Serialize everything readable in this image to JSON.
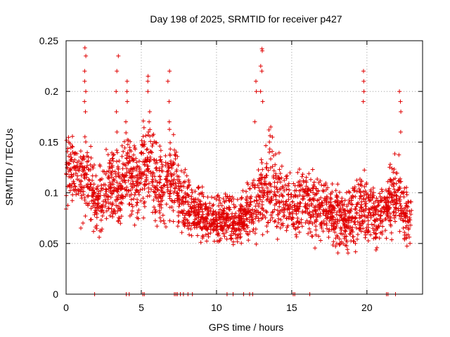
{
  "chart_data": {
    "type": "scatter",
    "title": "Day 198 of 2025, SRMTID for receiver p427",
    "xlabel": "GPS time / hours",
    "ylabel": "SRMTID / TECUs",
    "xlim": [
      0,
      23.7
    ],
    "ylim": [
      0,
      0.25
    ],
    "xticks": [
      0,
      5,
      10,
      15,
      20
    ],
    "xtick_labels": [
      "0",
      "5",
      "10",
      "15",
      "20"
    ],
    "yticks": [
      0,
      0.05,
      0.1,
      0.15,
      0.2,
      0.25
    ],
    "ytick_labels": [
      "0",
      "0.05",
      "0.1",
      "0.15",
      "0.2",
      "0.25"
    ],
    "grid": true,
    "marker": "+",
    "series": [
      {
        "name": "SRMTID",
        "color": "#e00000",
        "trend": {
          "x": [
            0,
            0.5,
            1,
            1.5,
            2,
            2.5,
            3,
            3.5,
            4,
            4.5,
            5,
            5.5,
            6,
            6.5,
            7,
            7.5,
            8,
            8.5,
            9,
            9.5,
            10,
            10.5,
            11,
            11.5,
            12,
            12.5,
            13,
            13.5,
            14,
            14.5,
            15,
            15.5,
            16,
            16.5,
            17,
            17.5,
            18,
            18.5,
            19,
            19.5,
            20,
            20.5,
            21,
            21.5,
            22,
            22.5,
            23
          ],
          "y": [
            0.13,
            0.12,
            0.11,
            0.115,
            0.09,
            0.095,
            0.11,
            0.1,
            0.12,
            0.11,
            0.115,
            0.13,
            0.11,
            0.1,
            0.12,
            0.1,
            0.09,
            0.08,
            0.08,
            0.075,
            0.07,
            0.075,
            0.075,
            0.07,
            0.08,
            0.085,
            0.1,
            0.11,
            0.1,
            0.09,
            0.085,
            0.09,
            0.095,
            0.09,
            0.085,
            0.08,
            0.075,
            0.07,
            0.075,
            0.09,
            0.08,
            0.075,
            0.08,
            0.09,
            0.1,
            0.08,
            0.07
          ],
          "spread": [
            0.035,
            0.03,
            0.035,
            0.04,
            0.03,
            0.03,
            0.035,
            0.03,
            0.035,
            0.03,
            0.035,
            0.04,
            0.035,
            0.035,
            0.04,
            0.03,
            0.025,
            0.02,
            0.025,
            0.02,
            0.02,
            0.02,
            0.02,
            0.02,
            0.025,
            0.025,
            0.035,
            0.04,
            0.035,
            0.03,
            0.025,
            0.03,
            0.03,
            0.03,
            0.025,
            0.025,
            0.025,
            0.025,
            0.03,
            0.035,
            0.025,
            0.025,
            0.025,
            0.03,
            0.035,
            0.03,
            0.025
          ],
          "points_per_hour": 110
        },
        "peaks": [
          {
            "x": 1.3,
            "y": [
              0.18,
              0.19,
              0.2,
              0.21,
              0.22,
              0.243,
              0.235
            ]
          },
          {
            "x": 3.4,
            "y": [
              0.16,
              0.18,
              0.2,
              0.22,
              0.235
            ]
          },
          {
            "x": 4.0,
            "y": [
              0.17,
              0.19,
              0.2,
              0.21
            ]
          },
          {
            "x": 5.5,
            "y": [
              0.16,
              0.17,
              0.18,
              0.2,
              0.21,
              0.215
            ]
          },
          {
            "x": 6.8,
            "y": [
              0.17,
              0.19,
              0.21,
              0.22
            ]
          },
          {
            "x": 13.0,
            "y": [
              0.19,
              0.2,
              0.22,
              0.225,
              0.24,
              0.242
            ]
          },
          {
            "x": 12.6,
            "y": [
              0.17,
              0.2,
              0.21
            ]
          },
          {
            "x": 19.8,
            "y": [
              0.19,
              0.2,
              0.21,
              0.22
            ]
          },
          {
            "x": 22.2,
            "y": [
              0.16,
              0.18,
              0.19,
              0.2
            ]
          }
        ],
        "zero_x": [
          1.9,
          4.0,
          4.2,
          5.1,
          5.2,
          7.2,
          7.3,
          7.4,
          7.6,
          7.8,
          8.1,
          8.4,
          10.7,
          11.1,
          11.8,
          12.2,
          12.4,
          15.1,
          15.2,
          16.2,
          21.3,
          21.4,
          21.9
        ]
      }
    ]
  }
}
